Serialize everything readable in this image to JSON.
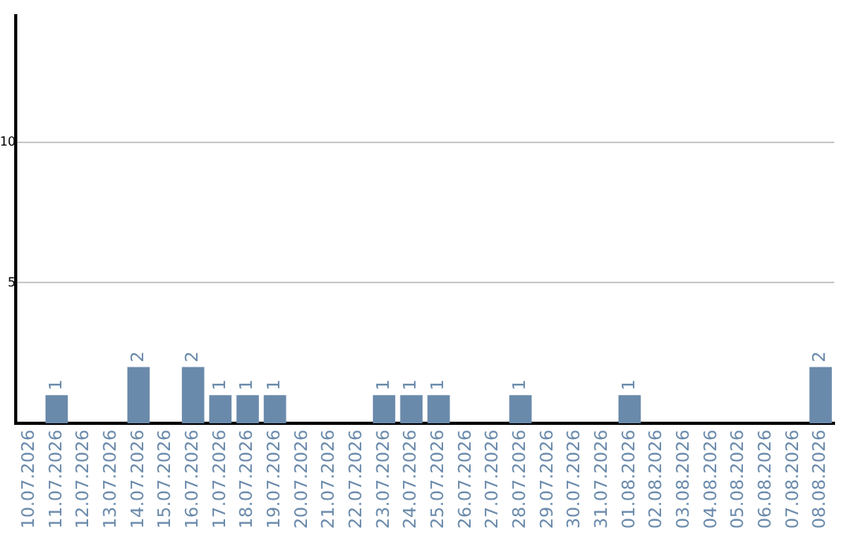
{
  "chart_data": {
    "type": "bar",
    "categories": [
      "10.07.2026",
      "11.07.2026",
      "12.07.2026",
      "13.07.2026",
      "14.07.2026",
      "15.07.2026",
      "16.07.2026",
      "17.07.2026",
      "18.07.2026",
      "19.07.2026",
      "20.07.2026",
      "21.07.2026",
      "22.07.2026",
      "23.07.2026",
      "24.07.2026",
      "25.07.2026",
      "26.07.2026",
      "27.07.2026",
      "28.07.2026",
      "29.07.2026",
      "30.07.2026",
      "31.07.2026",
      "01.08.2026",
      "02.08.2026",
      "03.08.2026",
      "04.08.2026",
      "05.08.2026",
      "06.08.2026",
      "07.08.2026",
      "08.08.2026"
    ],
    "values": [
      0,
      1,
      0,
      0,
      2,
      0,
      2,
      1,
      1,
      1,
      0,
      0,
      0,
      1,
      1,
      1,
      0,
      0,
      1,
      0,
      0,
      0,
      1,
      0,
      0,
      0,
      0,
      0,
      0,
      2
    ],
    "value_labels": [
      null,
      "1",
      null,
      null,
      "2",
      null,
      "2",
      "1",
      "1",
      "1",
      null,
      null,
      null,
      "1",
      "1",
      "1",
      null,
      null,
      "1",
      null,
      null,
      null,
      "1",
      null,
      null,
      null,
      null,
      null,
      null,
      "2"
    ],
    "color": "#6a8aab",
    "ylim": [
      0,
      14.5
    ],
    "yticks": [
      5,
      10
    ],
    "grid": "y",
    "legend": false
  }
}
